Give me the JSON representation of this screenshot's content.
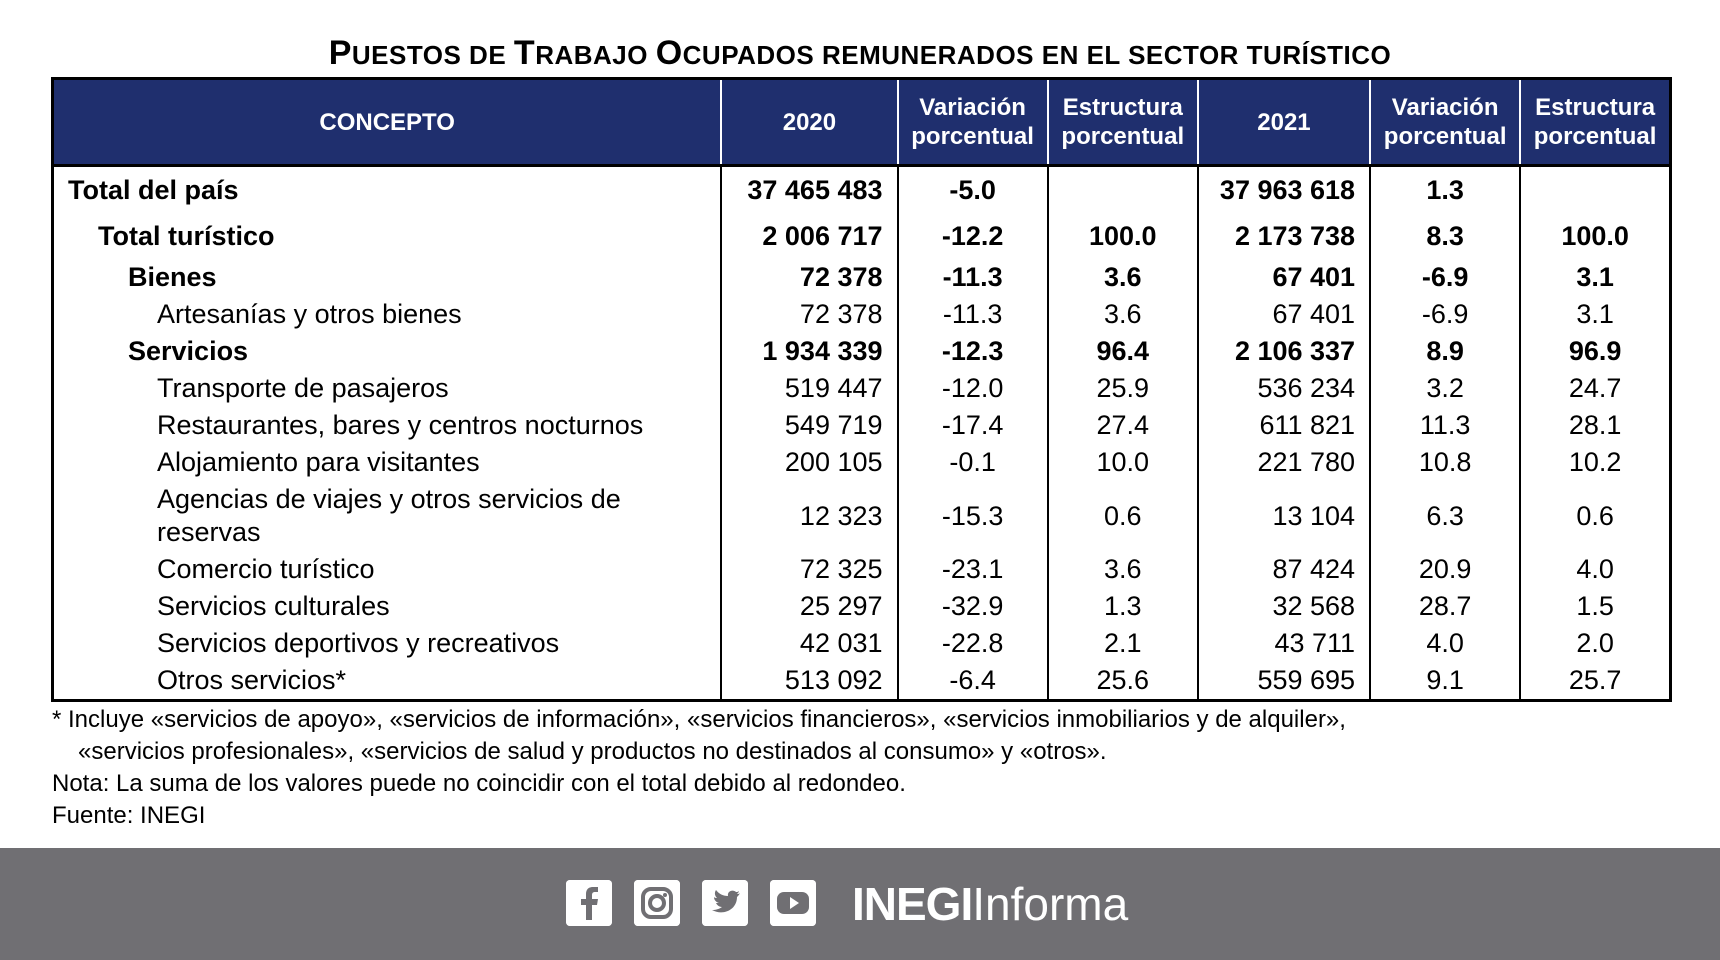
{
  "title": {
    "first": "P",
    "w2": "UESTOS DE ",
    "t": "T",
    "w3": "RABAJO ",
    "o": "O",
    "rest": "CUPADOS REMUNERADOS EN EL SECTOR TURÍSTICO"
  },
  "headers": [
    "CONCEPTO",
    "2020",
    "Variación porcentual",
    "Estructura porcentual",
    "2021",
    "Variación porcentual",
    "Estructura porcentual"
  ],
  "rows": [
    {
      "concept": "Total del país",
      "v2020": "37 465 483",
      "var2020": "-5.0",
      "est2020": "",
      "v2021": "37 963 618",
      "var2021": "1.3",
      "est2021": ""
    },
    {
      "concept": "Total turístico",
      "v2020": "2 006 717",
      "var2020": "-12.2",
      "est2020": "100.0",
      "v2021": "2 173 738",
      "var2021": "8.3",
      "est2021": "100.0"
    },
    {
      "concept": "Bienes",
      "v2020": "72 378",
      "var2020": "-11.3",
      "est2020": "3.6",
      "v2021": "67 401",
      "var2021": "-6.9",
      "est2021": "3.1"
    },
    {
      "concept": "Artesanías y otros bienes",
      "v2020": "72 378",
      "var2020": "-11.3",
      "est2020": "3.6",
      "v2021": "67 401",
      "var2021": "-6.9",
      "est2021": "3.1"
    },
    {
      "concept": "Servicios",
      "v2020": "1 934 339",
      "var2020": "-12.3",
      "est2020": "96.4",
      "v2021": "2 106 337",
      "var2021": "8.9",
      "est2021": "96.9"
    },
    {
      "concept": "Transporte de pasajeros",
      "v2020": "519 447",
      "var2020": "-12.0",
      "est2020": "25.9",
      "v2021": "536 234",
      "var2021": "3.2",
      "est2021": "24.7"
    },
    {
      "concept": "Restaurantes, bares y centros nocturnos",
      "v2020": "549 719",
      "var2020": "-17.4",
      "est2020": "27.4",
      "v2021": "611 821",
      "var2021": "11.3",
      "est2021": "28.1"
    },
    {
      "concept": "Alojamiento para visitantes",
      "v2020": "200 105",
      "var2020": "-0.1",
      "est2020": "10.0",
      "v2021": "221 780",
      "var2021": "10.8",
      "est2021": "10.2"
    },
    {
      "concept": "Agencias de viajes y otros servicios de reservas",
      "v2020": "12 323",
      "var2020": "-15.3",
      "est2020": "0.6",
      "v2021": "13 104",
      "var2021": "6.3",
      "est2021": "0.6"
    },
    {
      "concept": "Comercio turístico",
      "v2020": "72 325",
      "var2020": "-23.1",
      "est2020": "3.6",
      "v2021": "87 424",
      "var2021": "20.9",
      "est2021": "4.0"
    },
    {
      "concept": "Servicios culturales",
      "v2020": "25 297",
      "var2020": "-32.9",
      "est2020": "1.3",
      "v2021": "32 568",
      "var2021": "28.7",
      "est2021": "1.5"
    },
    {
      "concept": "Servicios deportivos y recreativos",
      "v2020": "42 031",
      "var2020": "-22.8",
      "est2020": "2.1",
      "v2021": "43 711",
      "var2021": "4.0",
      "est2021": "2.0"
    },
    {
      "concept": "Otros servicios*",
      "v2020": "513 092",
      "var2020": "-6.4",
      "est2020": "25.6",
      "v2021": "559 695",
      "var2021": "9.1",
      "est2021": "25.7"
    }
  ],
  "notes": {
    "footnote1": "* Incluye «servicios de apoyo», «servicios de información», «servicios financieros», «servicios inmobiliarios y de alquiler»,",
    "footnote2": "«servicios profesionales», «servicios de salud y productos no destinados al consumo» y «otros».",
    "nota": "Nota: La suma de los valores puede no coincidir con el total debido al redondeo.",
    "fuente": "Fuente: INEGI"
  },
  "footer": {
    "brand_bold": "INEGI",
    "brand_light": "Informa",
    "icons": [
      "facebook-icon",
      "instagram-icon",
      "twitter-icon",
      "youtube-icon"
    ]
  },
  "colors": {
    "header_bg": "#1f2f6e",
    "footer_bg": "#706f73"
  }
}
